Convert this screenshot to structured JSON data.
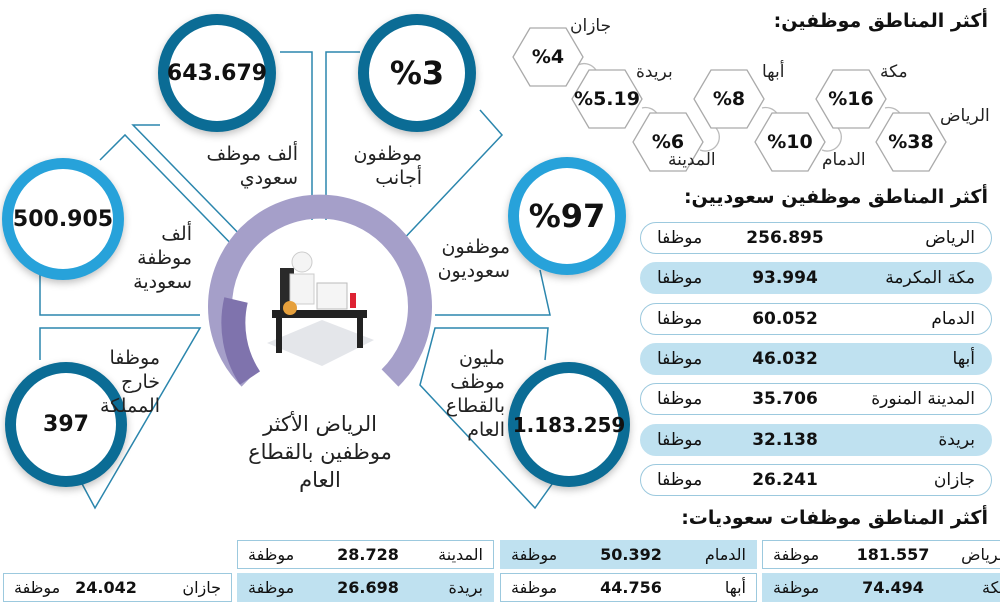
{
  "colors": {
    "dark_ring": "#0b6c95",
    "light_ring": "#27a2da",
    "purple_ring": "#a59fc9",
    "highlight_row": "#bfe1f0"
  },
  "center": {
    "caption": [
      "الرياض الأكثر",
      "موظفين بالقطاع",
      "العام"
    ],
    "illustration": "employee-at-desk-icon"
  },
  "stats": {
    "saudi_male": {
      "value": "643.679",
      "label": [
        "ألف موظف",
        "سعودي"
      ]
    },
    "foreign": {
      "value": "%3",
      "label": [
        "موظفون",
        "أجانب"
      ]
    },
    "saudi_pct": {
      "value": "%97",
      "label": [
        "موظفون",
        "سعوديون"
      ]
    },
    "saudi_female": {
      "value": "500.905",
      "label": [
        "ألف",
        "موظفة",
        "سعودية"
      ]
    },
    "abroad": {
      "value": "397",
      "label": [
        "موظفا",
        "خارج",
        "المملكة"
      ]
    },
    "total": {
      "value": "1.183.259",
      "label": [
        "مليون",
        "موظف",
        "بالقطاع",
        "العام"
      ]
    }
  },
  "regions_pct": {
    "title": "أكثر المناطق موظفين:",
    "items": [
      {
        "name": "الرياض",
        "value": "%38"
      },
      {
        "name": "مكة",
        "value": "%16"
      },
      {
        "name": "الدمام",
        "value": "%10"
      },
      {
        "name": "أبها",
        "value": "%8"
      },
      {
        "name": "المدينة",
        "value": "%6"
      },
      {
        "name": "بريدة",
        "value": "%5.19"
      },
      {
        "name": "جازان",
        "value": "%4"
      }
    ]
  },
  "saudi_male_regions": {
    "title": "أكثر المناطق موظفين سعوديين:",
    "unit": "موظفا",
    "rows": [
      {
        "name": "الرياض",
        "value": "256.895"
      },
      {
        "name": "مكة المكرمة",
        "value": "93.994"
      },
      {
        "name": "الدمام",
        "value": "60.052"
      },
      {
        "name": "أبها",
        "value": "46.032"
      },
      {
        "name": "المدينة المنورة",
        "value": "35.706"
      },
      {
        "name": "بريدة",
        "value": "32.138"
      },
      {
        "name": "جازان",
        "value": "26.241"
      }
    ]
  },
  "saudi_female_regions": {
    "title": "أكثر المناطق موظفات سعوديات:",
    "unit": "موظفة",
    "cells": [
      {
        "name": "الرياض",
        "value": "181.557"
      },
      {
        "name": "الدمام",
        "value": "50.392"
      },
      {
        "name": "المدينة",
        "value": "28.728"
      },
      {
        "name": "مكة",
        "value": "74.494"
      },
      {
        "name": "أبها",
        "value": "44.756"
      },
      {
        "name": "بريدة",
        "value": "26.698"
      },
      {
        "name": "جازان",
        "value": "24.042"
      }
    ]
  }
}
